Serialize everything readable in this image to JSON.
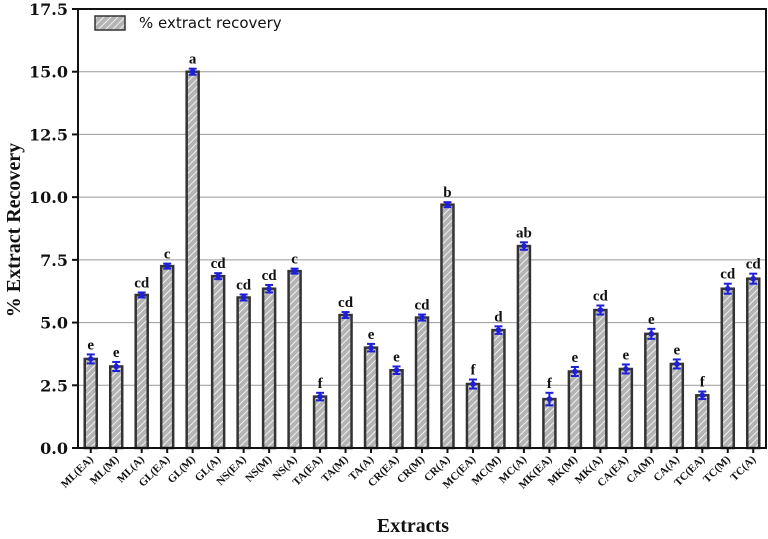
{
  "chart_data": {
    "type": "bar",
    "xlabel": "Extracts",
    "ylabel": "% Extract Recovery",
    "ylim": [
      0,
      17.5
    ],
    "yticks": [
      "0.0",
      "2.5",
      "5.0",
      "7.5",
      "10.0",
      "12.5",
      "15.0",
      "17.5"
    ],
    "grid": "horizontal",
    "legend_position": "top-left",
    "colors": {
      "bar_fill": "#b4b4b4",
      "bar_stroke": "#333333",
      "hatch": "#ffffff",
      "error_bar": "#1f1fd6",
      "grid": "#999999"
    },
    "categories": [
      "ML(EA)",
      "ML(M)",
      "ML(A)",
      "GL(EA)",
      "GL(M)",
      "GL(A)",
      "NS(EA)",
      "NS(M)",
      "NS(A)",
      "TA(EA)",
      "TA(M)",
      "TA(A)",
      "CR(EA)",
      "CR(M)",
      "CR(A)",
      "MC(EA)",
      "MC(M)",
      "MC(A)",
      "MK(EA)",
      "MK(M)",
      "MK(A)",
      "CA(EA)",
      "CA(M)",
      "CA(A)",
      "TC(EA)",
      "TC(M)",
      "TC(A)"
    ],
    "series": [
      {
        "name": "% extract recovery",
        "values": [
          3.55,
          3.25,
          6.1,
          7.25,
          15.0,
          6.85,
          6.0,
          6.35,
          7.05,
          2.05,
          5.3,
          4.0,
          3.1,
          5.2,
          9.7,
          2.55,
          4.7,
          8.05,
          1.95,
          3.05,
          5.5,
          3.15,
          4.55,
          3.35,
          2.1,
          6.35,
          6.75
        ],
        "errors": [
          0.18,
          0.18,
          0.1,
          0.1,
          0.12,
          0.12,
          0.12,
          0.15,
          0.1,
          0.15,
          0.12,
          0.15,
          0.15,
          0.12,
          0.1,
          0.18,
          0.15,
          0.15,
          0.25,
          0.18,
          0.18,
          0.18,
          0.2,
          0.18,
          0.15,
          0.2,
          0.2
        ],
        "significance": [
          "e",
          "e",
          "cd",
          "c",
          "a",
          "cd",
          "cd",
          "cd",
          "c",
          "f",
          "cd",
          "e",
          "e",
          "cd",
          "b",
          "f",
          "d",
          "ab",
          "f",
          "e",
          "cd",
          "e",
          "e",
          "e",
          "f",
          "cd",
          "cd"
        ]
      }
    ]
  }
}
